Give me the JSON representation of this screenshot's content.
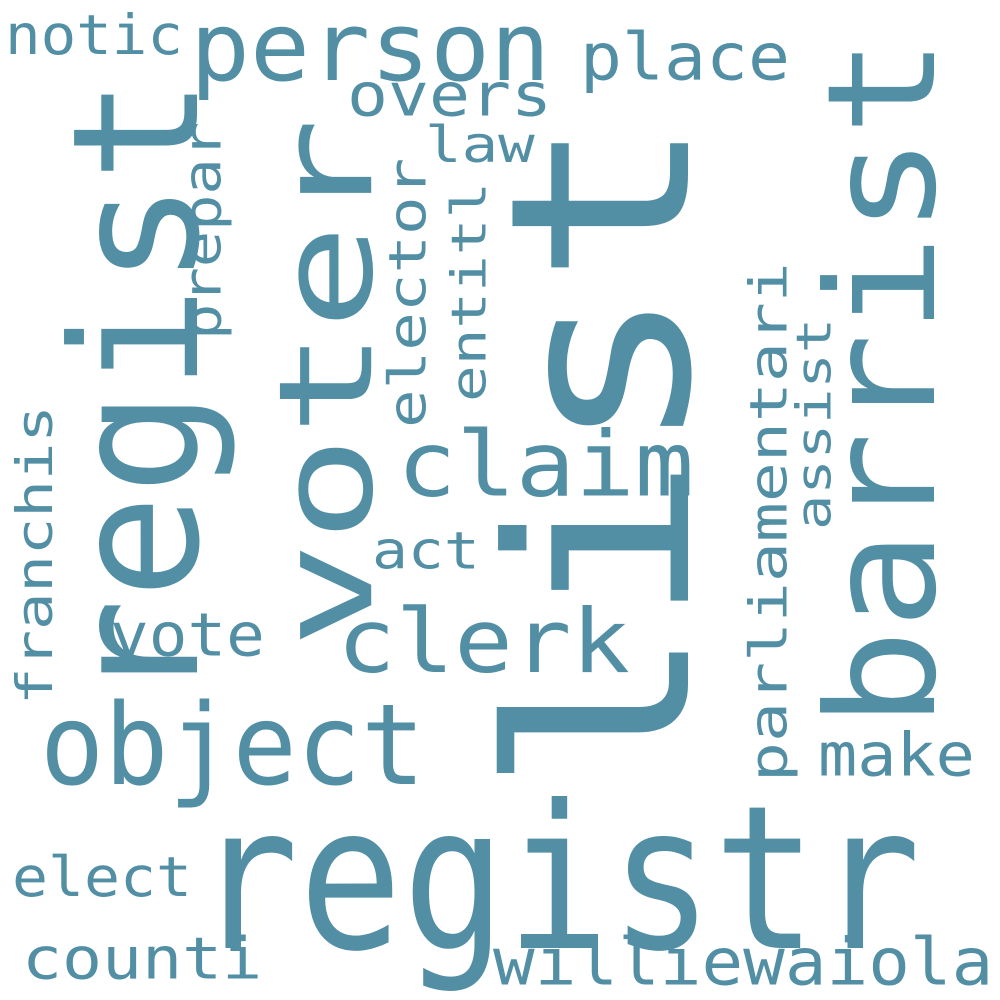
{
  "colors": {
    "background": "#ffffff",
    "word": "#528fa5"
  },
  "words": [
    {
      "key": "list",
      "text": "list",
      "rotated": true
    },
    {
      "key": "registr",
      "text": "registr",
      "rotated": false
    },
    {
      "key": "barrist",
      "text": "barrist",
      "rotated": true
    },
    {
      "key": "voter",
      "text": "voter",
      "rotated": true
    },
    {
      "key": "regist",
      "text": "regist",
      "rotated": true
    },
    {
      "key": "person",
      "text": "person",
      "rotated": false
    },
    {
      "key": "object",
      "text": "object",
      "rotated": false
    },
    {
      "key": "clerk",
      "text": "clerk",
      "rotated": false
    },
    {
      "key": "claim",
      "text": "claim",
      "rotated": false
    },
    {
      "key": "williewaiola",
      "text": "williewaiola",
      "rotated": false
    },
    {
      "key": "parliamentari",
      "text": "parliamentari",
      "rotated": true
    },
    {
      "key": "place",
      "text": "place",
      "rotated": false
    },
    {
      "key": "overs",
      "text": "overs",
      "rotated": false
    },
    {
      "key": "vote",
      "text": "vote",
      "rotated": false
    },
    {
      "key": "make",
      "text": "make",
      "rotated": false
    },
    {
      "key": "counti",
      "text": "counti",
      "rotated": false
    },
    {
      "key": "franchis",
      "text": "franchis",
      "rotated": true
    },
    {
      "key": "elector",
      "text": "elector",
      "rotated": true
    },
    {
      "key": "prepar",
      "text": "prepar",
      "rotated": true
    },
    {
      "key": "notic",
      "text": "notic",
      "rotated": false
    },
    {
      "key": "elect",
      "text": "elect",
      "rotated": false
    },
    {
      "key": "act",
      "text": "act",
      "rotated": false
    },
    {
      "key": "assist",
      "text": "assist",
      "rotated": true
    },
    {
      "key": "entitl",
      "text": "entitl",
      "rotated": true
    },
    {
      "key": "law",
      "text": "law",
      "rotated": false
    }
  ]
}
